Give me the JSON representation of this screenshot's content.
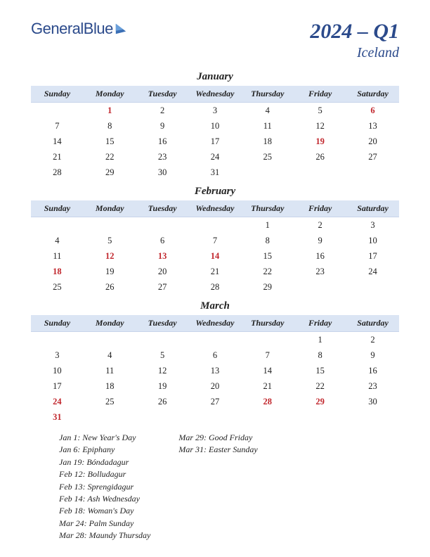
{
  "logo": {
    "text1": "General",
    "text2": "Blue"
  },
  "title": "2024 – Q1",
  "subtitle": "Iceland",
  "colors": {
    "brand": "#2b4a8b",
    "header_bg": "#dbe5f4",
    "holiday": "#c1272d",
    "text": "#222222",
    "bg": "#ffffff"
  },
  "day_headers": [
    "Sunday",
    "Monday",
    "Tuesday",
    "Wednesday",
    "Thursday",
    "Friday",
    "Saturday"
  ],
  "months": [
    {
      "name": "January",
      "weeks": [
        [
          "",
          "1",
          "2",
          "3",
          "4",
          "5",
          "6"
        ],
        [
          "7",
          "8",
          "9",
          "10",
          "11",
          "12",
          "13"
        ],
        [
          "14",
          "15",
          "16",
          "17",
          "18",
          "19",
          "20"
        ],
        [
          "21",
          "22",
          "23",
          "24",
          "25",
          "26",
          "27"
        ],
        [
          "28",
          "29",
          "30",
          "31",
          "",
          "",
          ""
        ]
      ],
      "highlights": [
        "1",
        "6",
        "19"
      ]
    },
    {
      "name": "February",
      "weeks": [
        [
          "",
          "",
          "",
          "",
          "1",
          "2",
          "3"
        ],
        [
          "4",
          "5",
          "6",
          "7",
          "8",
          "9",
          "10"
        ],
        [
          "11",
          "12",
          "13",
          "14",
          "15",
          "16",
          "17"
        ],
        [
          "18",
          "19",
          "20",
          "21",
          "22",
          "23",
          "24"
        ],
        [
          "25",
          "26",
          "27",
          "28",
          "29",
          "",
          ""
        ]
      ],
      "highlights": [
        "12",
        "13",
        "14",
        "18"
      ]
    },
    {
      "name": "March",
      "weeks": [
        [
          "",
          "",
          "",
          "",
          "",
          "1",
          "2"
        ],
        [
          "3",
          "4",
          "5",
          "6",
          "7",
          "8",
          "9"
        ],
        [
          "10",
          "11",
          "12",
          "13",
          "14",
          "15",
          "16"
        ],
        [
          "17",
          "18",
          "19",
          "20",
          "21",
          "22",
          "23"
        ],
        [
          "24",
          "25",
          "26",
          "27",
          "28",
          "29",
          "30"
        ],
        [
          "31",
          "",
          "",
          "",
          "",
          "",
          ""
        ]
      ],
      "highlights": [
        "24",
        "28",
        "29",
        "31"
      ]
    }
  ],
  "holidays_col1": [
    "Jan 1: New Year's Day",
    "Jan 6: Epiphany",
    "Jan 19: Bóndadagur",
    "Feb 12: Bolludagur",
    "Feb 13: Sprengidagur",
    "Feb 14: Ash Wednesday",
    "Feb 18: Woman's Day",
    "Mar 24: Palm Sunday",
    "Mar 28: Maundy Thursday"
  ],
  "holidays_col2": [
    "Mar 29: Good Friday",
    "Mar 31: Easter Sunday"
  ]
}
